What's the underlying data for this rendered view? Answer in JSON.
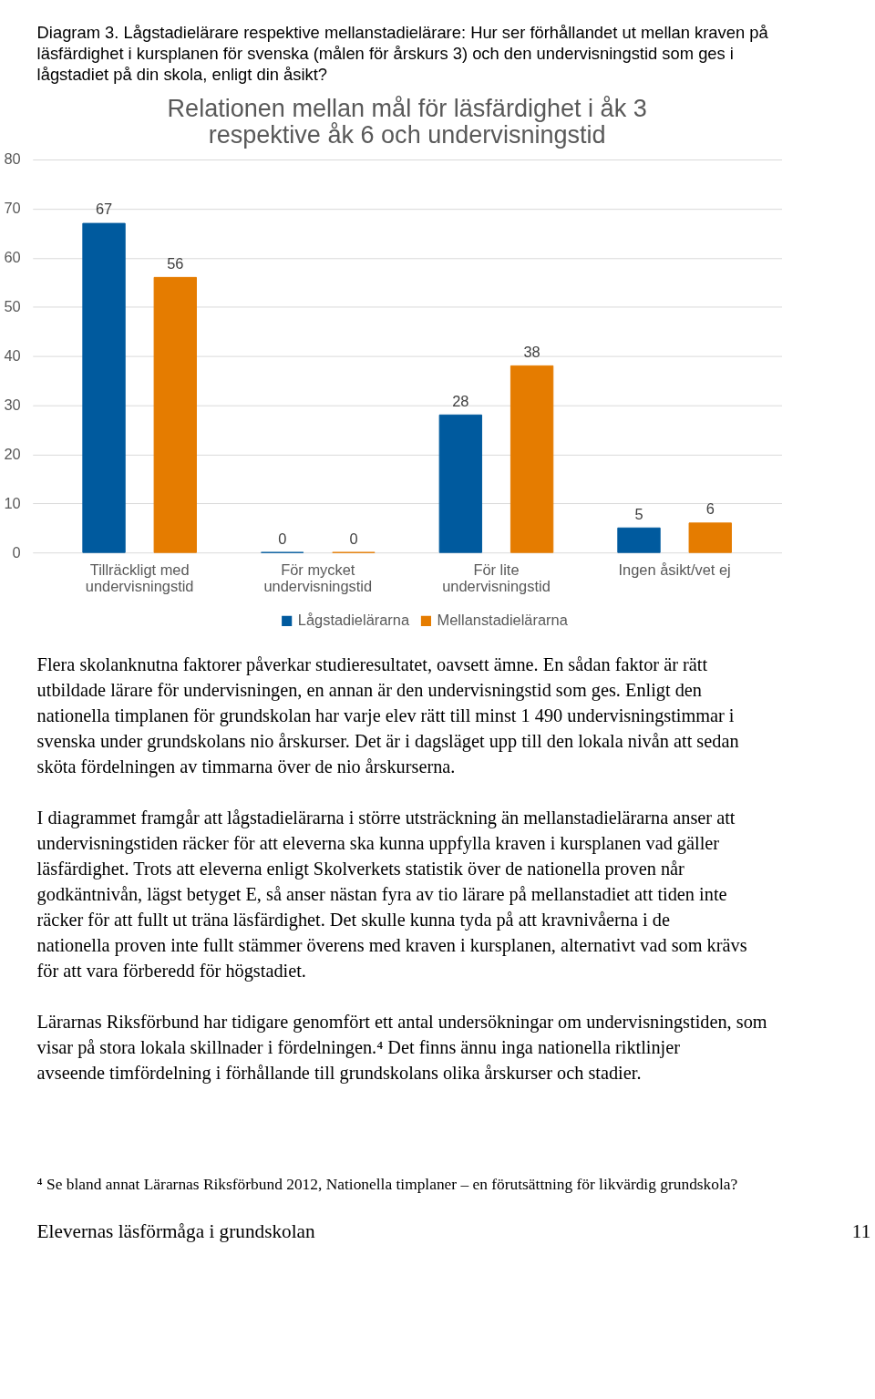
{
  "chart_data": {
    "type": "bar",
    "title": "Relationen mellan mål för läsfärdighet i åk 3 respektive åk 6  och undervisningstid",
    "categories": [
      "Tillräckligt med undervisningstid",
      "För mycket undervisningstid",
      "För lite undervisningstid",
      "Ingen åsikt/vet ej"
    ],
    "series": [
      {
        "name": "Lågstadielärarna",
        "color": "#005a9e",
        "values": [
          67,
          0,
          28,
          5
        ]
      },
      {
        "name": "Mellanstadielärarna",
        "color": "#e57c00",
        "values": [
          56,
          0,
          38,
          6
        ]
      }
    ],
    "ylim": [
      0,
      80
    ],
    "yticks": [
      0,
      10,
      20,
      30,
      40,
      50,
      60,
      70,
      80
    ],
    "grid": "y",
    "legend": "bottom",
    "data_labels": true,
    "annotations": [
      "Diagram 3. Lågstadielärare respektive mellanstadielärare: Hur ser förhållandet ut mellan kraven på läsfärdighet i kursplanen för svenska (målen för årskurs 3) och den undervisningstid som ges i lågstadiet på din skola, enligt din åsikt?",
      "Flera skolanknutna faktorer påverkar studieresultatet, oavsett ämne. En sådan faktor är rätt utbildade lärare för undervisningen, en annan är den undervisningstid som ges. Enligt den nationella timplanen för grundskolan har varje elev rätt till minst 1 490 undervisningstimmar i svenska under grundskolans nio årskurser. Det är i dagsläget upp till den lokala nivån att sedan sköta fördelningen av timmarna över de nio årskurserna.",
      "I diagrammet framgår att lågstadielärarna i större utsträckning än mellanstadielärarna anser att undervisningstiden räcker för att eleverna ska kunna uppfylla kraven i kursplanen vad gäller läsfärdighet. Trots att eleverna enligt Skolverkets statistik över de nationella proven når godkäntnivån, lägst betyget E, så anser nästan fyra av tio lärare på mellanstadiet att tiden inte räcker för att fullt ut träna läsfärdighet. Det skulle kunna tyda på att kravnivåerna i de nationella proven inte fullt stämmer överens med kraven i kursplanen, alternativt vad som krävs för att vara förberedd för högstadiet.",
      "Lärarnas Riksförbund har tidigare genomfört ett antal undersökningar om undervisningstiden, som visar på stora lokala skillnader i fördelningen.⁴ Det finns ännu inga nationella riktlinjer avseende timfördelning i förhållande till grundskolans olika årskurser och stadier.",
      "⁴ Se bland annat Lärarnas Riksförbund 2012, Nationella timplaner – en förutsättning för likvärdig grundskola?",
      "Elevernas läsförmåga i grundskolan",
      "11"
    ]
  }
}
